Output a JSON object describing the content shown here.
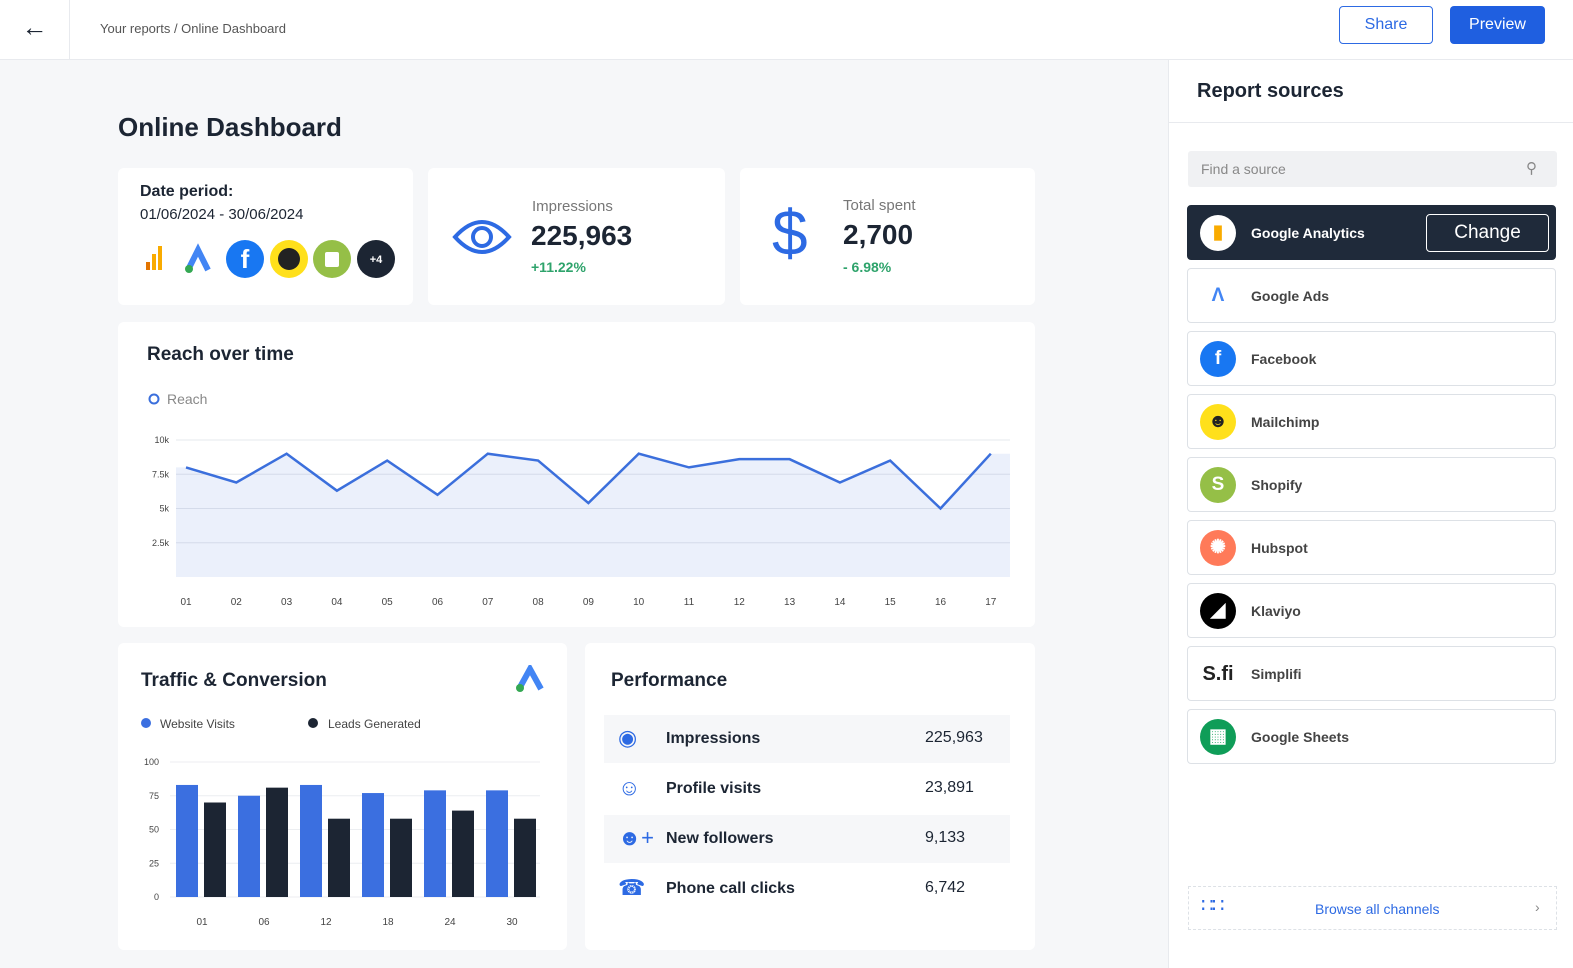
{
  "header": {
    "breadcrumb": "Your reports / Online Dashboard",
    "share": "Share",
    "preview": "Preview"
  },
  "title": "Online Dashboard",
  "date_card": {
    "label": "Date period:",
    "range": "01/06/2024 - 30/06/2024",
    "more": "+4"
  },
  "kpis": [
    {
      "label": "Impressions",
      "value": "225,963",
      "change": "+11.22%"
    },
    {
      "label": "Total spent",
      "value": "2,700",
      "change": "- 6.98%"
    }
  ],
  "chart_data": [
    {
      "type": "line",
      "title": "Reach over time",
      "categories": [
        "01",
        "02",
        "03",
        "04",
        "05",
        "06",
        "07",
        "08",
        "09",
        "10",
        "11",
        "12",
        "13",
        "14",
        "15",
        "16",
        "17"
      ],
      "series": [
        {
          "name": "Reach",
          "color": "#3b6fdc",
          "values": [
            8000,
            6900,
            9000,
            6300,
            8500,
            6000,
            9000,
            8500,
            5400,
            9000,
            8000,
            8600,
            8600,
            6900,
            8500,
            5000,
            9000
          ]
        }
      ],
      "ylim": [
        0,
        10000
      ],
      "yticks": [
        {
          "value": 2500,
          "label": "2.5k"
        },
        {
          "value": 5000,
          "label": "5k"
        },
        {
          "value": 7500,
          "label": "7.5k"
        },
        {
          "value": 10000,
          "label": "10k"
        }
      ],
      "grid": true
    },
    {
      "type": "bar",
      "title": "Traffic & Conversion",
      "categories": [
        "01",
        "06",
        "12",
        "18",
        "24",
        "30"
      ],
      "series": [
        {
          "name": "Website Visits",
          "color": "#3b6fe0",
          "values": [
            83,
            75,
            83,
            77,
            79,
            79
          ]
        },
        {
          "name": "Leads Generated",
          "color": "#1c2533",
          "values": [
            70,
            81,
            58,
            58,
            64,
            58
          ]
        }
      ],
      "ylim": [
        0,
        100
      ],
      "yticks": [
        0,
        25,
        50,
        75,
        100
      ],
      "grid": true
    }
  ],
  "performance": {
    "title": "Performance",
    "rows": [
      {
        "label": "Impressions",
        "value": "225,963"
      },
      {
        "label": "Profile visits",
        "value": "23,891"
      },
      {
        "label": "New followers",
        "value": "9,133"
      },
      {
        "label": "Phone call clicks",
        "value": "6,742"
      }
    ]
  },
  "sources": {
    "title": "Report sources",
    "search": "Find a source",
    "change": "Change",
    "items": [
      "Google Analytics",
      "Google Ads",
      "Facebook",
      "Mailchimp",
      "Shopify",
      "Hubspot",
      "Klaviyo",
      "Simplifi",
      "Google Sheets"
    ],
    "browse": "Browse all channels"
  }
}
